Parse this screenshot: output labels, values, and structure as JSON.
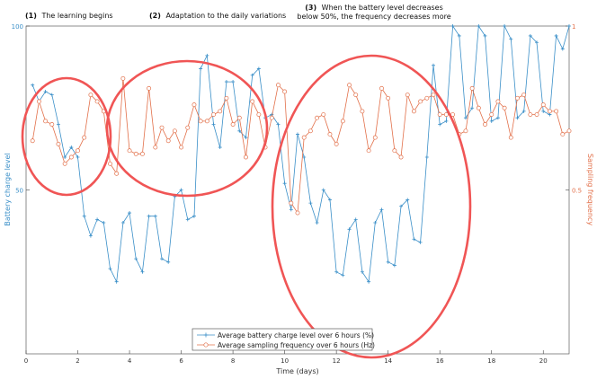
{
  "chart_data": {
    "type": "line",
    "xlabel": "Time (days)",
    "ylabel_left": "Battery charge level",
    "ylabel_right": "Sampling frequency",
    "xlim": [
      0,
      21
    ],
    "ylim_left": [
      0,
      100
    ],
    "ylim_right": [
      0,
      1
    ],
    "x_ticks": [
      0,
      2,
      4,
      6,
      8,
      10,
      12,
      14,
      16,
      18,
      20
    ],
    "y_left_ticks": [
      50,
      100
    ],
    "y_right_ticks": [
      0.5,
      1
    ],
    "grid": false,
    "legend_position": "bottom-center",
    "colors": {
      "battery": "#3a8fc8",
      "frequency": "#e2704a",
      "circle": "#f05555"
    },
    "series": [
      {
        "name": "Average battery charge level over 6 hours (%)",
        "axis": "left",
        "marker": "plus",
        "x": [
          0.25,
          0.5,
          0.75,
          1.0,
          1.25,
          1.5,
          1.75,
          2.0,
          2.25,
          2.5,
          2.75,
          3.0,
          3.25,
          3.5,
          3.75,
          4.0,
          4.25,
          4.5,
          4.75,
          5.0,
          5.25,
          5.5,
          5.75,
          6.0,
          6.25,
          6.5,
          6.75,
          7.0,
          7.25,
          7.5,
          7.75,
          8.0,
          8.25,
          8.5,
          8.75,
          9.0,
          9.25,
          9.5,
          9.75,
          10.0,
          10.25,
          10.5,
          10.75,
          11.0,
          11.25,
          11.5,
          11.75,
          12.0,
          12.25,
          12.5,
          12.75,
          13.0,
          13.25,
          13.5,
          13.75,
          14.0,
          14.25,
          14.5,
          14.75,
          15.0,
          15.25,
          15.5,
          15.75,
          16.0,
          16.25,
          16.5,
          16.75,
          17.0,
          17.25,
          17.5,
          17.75,
          18.0,
          18.25,
          18.5,
          18.75,
          19.0,
          19.25,
          19.5,
          19.75,
          20.0,
          20.25,
          20.5,
          20.75,
          21.0
        ],
        "values": [
          82,
          77,
          80,
          79,
          70,
          60,
          63,
          60,
          42,
          36,
          41,
          40,
          26,
          22,
          40,
          43,
          29,
          25,
          42,
          42,
          29,
          28,
          48,
          50,
          41,
          42,
          87,
          91,
          70,
          63,
          83,
          83,
          68,
          66,
          85,
          87,
          72,
          73,
          70,
          52,
          44,
          67,
          60,
          46,
          40,
          50,
          47,
          25,
          24,
          38,
          41,
          25,
          22,
          40,
          44,
          28,
          27,
          45,
          47,
          35,
          34,
          60,
          88,
          70,
          71,
          100,
          97,
          72,
          75,
          100,
          97,
          71,
          72,
          100,
          96,
          72,
          74,
          97,
          95,
          74,
          73,
          97,
          93,
          100
        ]
      },
      {
        "name": "Average sampling frequency over 6 hours (Hz)",
        "axis": "right",
        "marker": "circle",
        "x": [
          0.25,
          0.5,
          0.75,
          1.0,
          1.25,
          1.5,
          1.75,
          2.0,
          2.25,
          2.5,
          2.75,
          3.0,
          3.25,
          3.5,
          3.75,
          4.0,
          4.25,
          4.5,
          4.75,
          5.0,
          5.25,
          5.5,
          5.75,
          6.0,
          6.25,
          6.5,
          6.75,
          7.0,
          7.25,
          7.5,
          7.75,
          8.0,
          8.25,
          8.5,
          8.75,
          9.0,
          9.25,
          9.5,
          9.75,
          10.0,
          10.25,
          10.5,
          10.75,
          11.0,
          11.25,
          11.5,
          11.75,
          12.0,
          12.25,
          12.5,
          12.75,
          13.0,
          13.25,
          13.5,
          13.75,
          14.0,
          14.25,
          14.5,
          14.75,
          15.0,
          15.25,
          15.5,
          15.75,
          16.0,
          16.25,
          16.5,
          16.75,
          17.0,
          17.25,
          17.5,
          17.75,
          18.0,
          18.25,
          18.5,
          18.75,
          19.0,
          19.25,
          19.5,
          19.75,
          20.0,
          20.25,
          20.5,
          20.75,
          21.0
        ],
        "values": [
          0.65,
          0.77,
          0.71,
          0.7,
          0.64,
          0.58,
          0.6,
          0.62,
          0.66,
          0.79,
          0.77,
          0.74,
          0.58,
          0.55,
          0.84,
          0.62,
          0.61,
          0.61,
          0.81,
          0.63,
          0.69,
          0.65,
          0.68,
          0.63,
          0.69,
          0.76,
          0.71,
          0.71,
          0.73,
          0.74,
          0.78,
          0.7,
          0.72,
          0.6,
          0.77,
          0.73,
          0.63,
          0.72,
          0.82,
          0.8,
          0.46,
          0.43,
          0.66,
          0.68,
          0.72,
          0.73,
          0.67,
          0.64,
          0.71,
          0.82,
          0.79,
          0.74,
          0.62,
          0.66,
          0.81,
          0.78,
          0.62,
          0.6,
          0.79,
          0.74,
          0.77,
          0.78,
          0.79,
          0.73,
          0.73,
          0.73,
          0.67,
          0.68,
          0.81,
          0.75,
          0.7,
          0.73,
          0.77,
          0.75,
          0.66,
          0.78,
          0.79,
          0.73,
          0.73,
          0.76,
          0.74,
          0.74,
          0.67,
          0.68
        ]
      }
    ],
    "annotations": [
      {
        "num": "(1)",
        "text": [
          "The learning begins"
        ]
      },
      {
        "num": "(2)",
        "text": [
          "Adaptation to the daily variations"
        ]
      },
      {
        "num": "(3)",
        "text": [
          "When the battery level decreases",
          "below 50%, the frequency decreases more"
        ]
      }
    ]
  }
}
